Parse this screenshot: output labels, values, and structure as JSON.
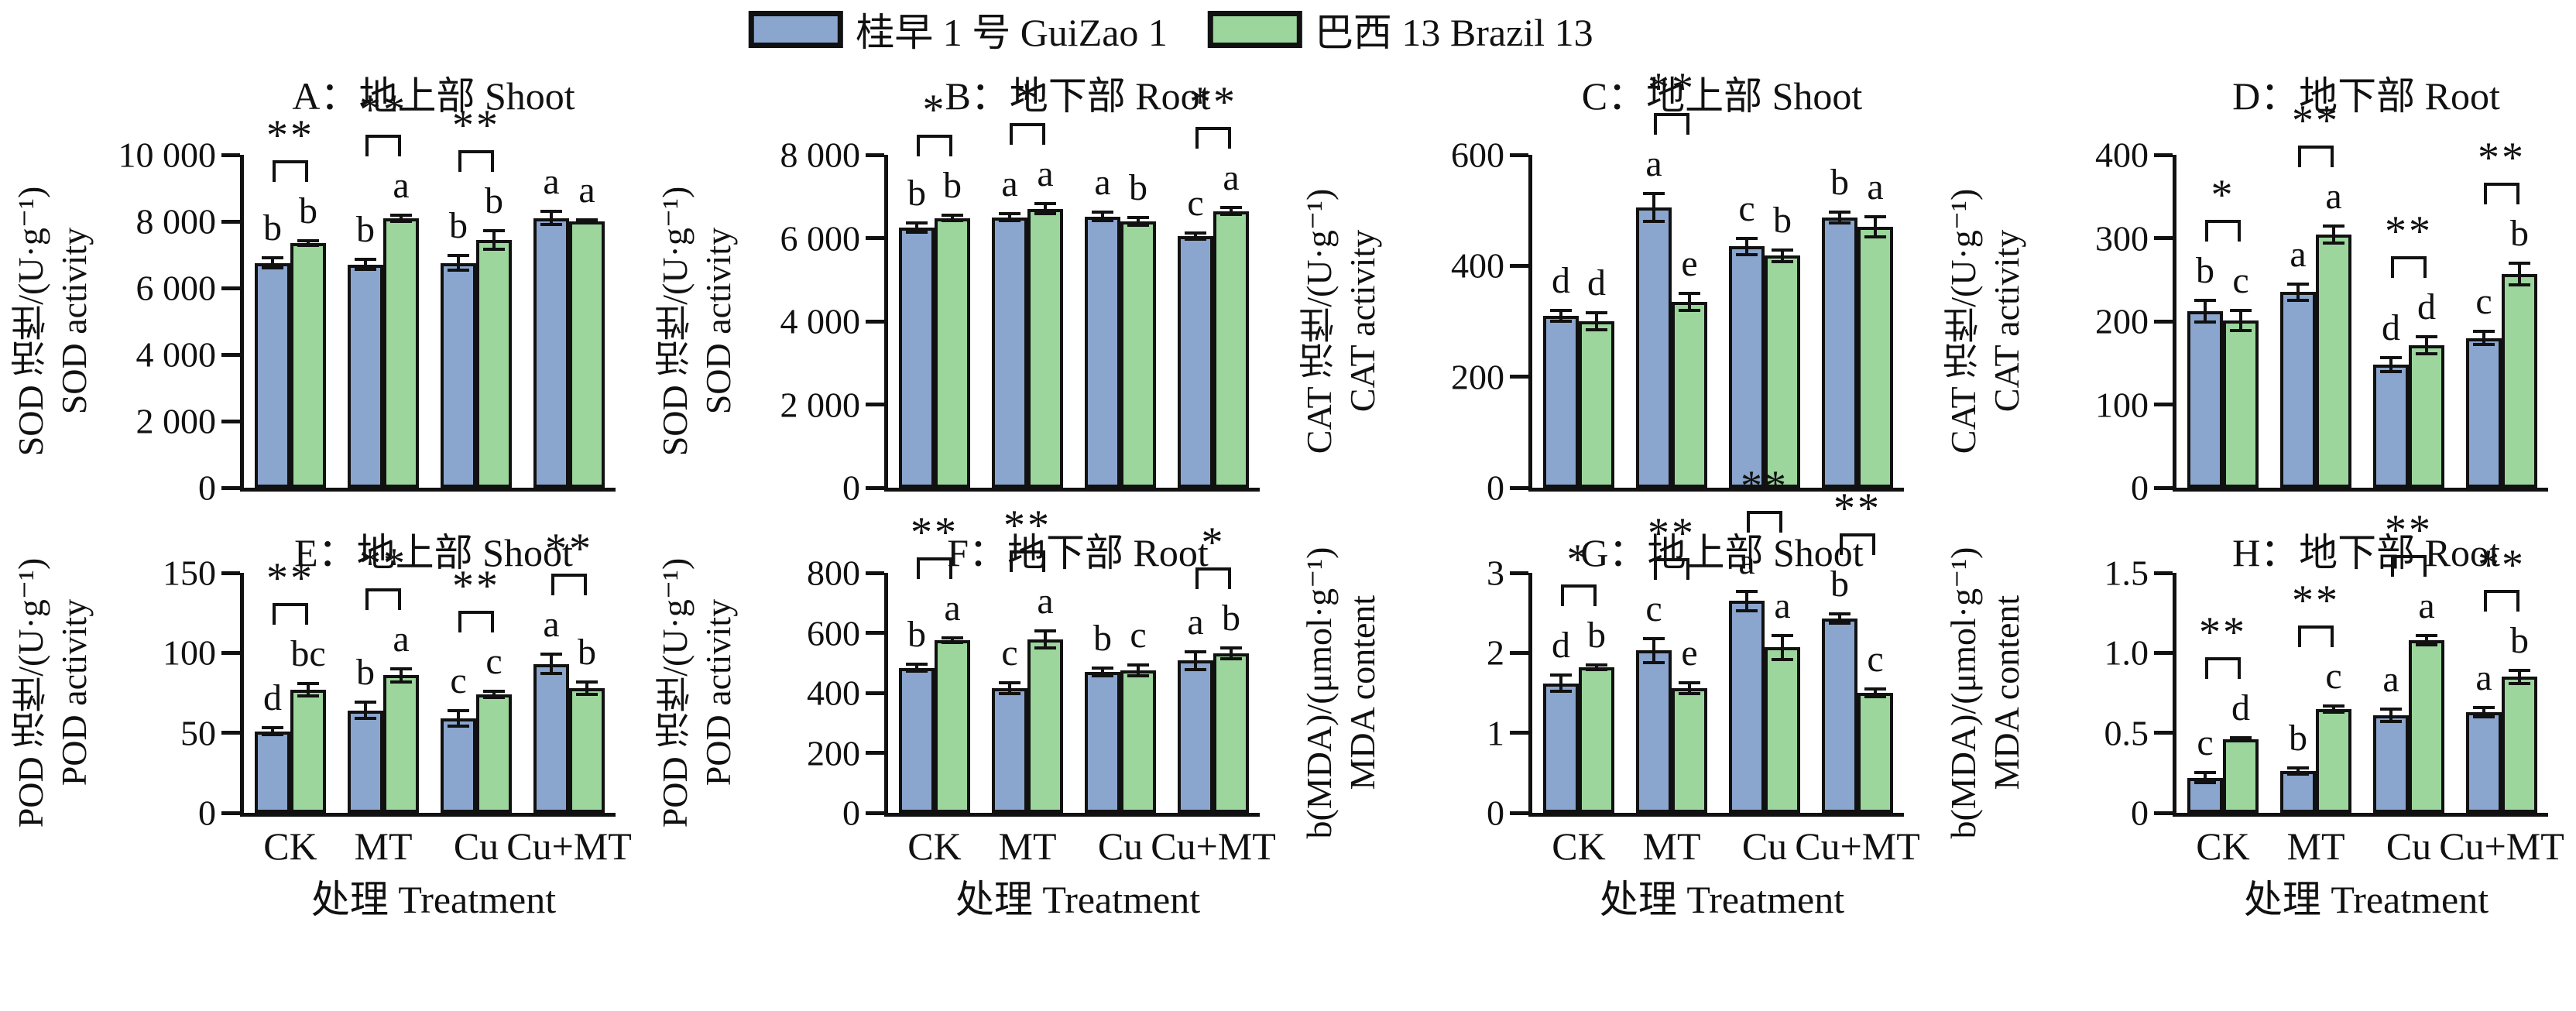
{
  "legend": {
    "items": [
      {
        "label": "桂早 1 号 GuiZao 1",
        "color": "#8aa5ce"
      },
      {
        "label": "巴西 13 Brazil 13",
        "color": "#9cd69c"
      }
    ]
  },
  "x_axis": {
    "categories": [
      "CK",
      "MT",
      "Cu",
      "Cu+MT"
    ],
    "title": "处理 Treatment"
  },
  "colors": {
    "bar_border": "#111111",
    "axis": "#111111"
  },
  "chart_data": [
    {
      "id": "A",
      "type": "bar",
      "title": "A：地上部 Shoot",
      "ylabel_cn": "SOD 活性/(U·g⁻¹)",
      "ylabel_en": "SOD activity",
      "ylim": [
        0,
        10000
      ],
      "yticks": [
        0,
        2000,
        4000,
        6000,
        8000,
        10000
      ],
      "ytick_labels": [
        "0",
        "2 000",
        "4 000",
        "6 000",
        "8 000",
        "10 000"
      ],
      "categories": [
        "CK",
        "MT",
        "Cu",
        "Cu+MT"
      ],
      "series": [
        {
          "name": "GuiZao 1",
          "values": [
            6750,
            6700,
            6750,
            8100
          ],
          "errors": [
            150,
            150,
            220,
            200
          ],
          "letters": [
            "b",
            "b",
            "b",
            "a"
          ]
        },
        {
          "name": "Brazil 13",
          "values": [
            7350,
            8100,
            7450,
            8000
          ],
          "errors": [
            70,
            90,
            280,
            40
          ],
          "letters": [
            "b",
            "a",
            "b",
            "a"
          ]
        }
      ],
      "significance": [
        "**",
        "**",
        "**",
        ""
      ]
    },
    {
      "id": "B",
      "type": "bar",
      "title": "B：地下部 Root",
      "ylabel_cn": "SOD 活性/(U·g⁻¹)",
      "ylabel_en": "SOD activity",
      "ylim": [
        0,
        8000
      ],
      "yticks": [
        0,
        2000,
        4000,
        6000,
        8000
      ],
      "ytick_labels": [
        "0",
        "2 000",
        "4 000",
        "6 000",
        "8 000"
      ],
      "categories": [
        "CK",
        "MT",
        "Cu",
        "Cu+MT"
      ],
      "series": [
        {
          "name": "GuiZao 1",
          "values": [
            6250,
            6500,
            6520,
            6050
          ],
          "errors": [
            110,
            90,
            110,
            80
          ],
          "letters": [
            "b",
            "a",
            "a",
            "c"
          ]
        },
        {
          "name": "Brazil 13",
          "values": [
            6480,
            6700,
            6400,
            6650
          ],
          "errors": [
            60,
            120,
            90,
            90
          ],
          "letters": [
            "b",
            "a",
            "b",
            "a"
          ]
        }
      ],
      "significance": [
        "*",
        "*",
        "",
        "**"
      ]
    },
    {
      "id": "C",
      "type": "bar",
      "title": "C：地上部 Shoot",
      "ylabel_cn": "CAT 活性/(U·g⁻¹)",
      "ylabel_en": "CAT activity",
      "ylim": [
        0,
        600
      ],
      "yticks": [
        0,
        200,
        400,
        600
      ],
      "ytick_labels": [
        "0",
        "200",
        "400",
        "600"
      ],
      "categories": [
        "CK",
        "MT",
        "Cu",
        "Cu+MT"
      ],
      "series": [
        {
          "name": "GuiZao 1",
          "values": [
            310,
            505,
            435,
            487
          ],
          "errors": [
            10,
            25,
            15,
            10
          ],
          "letters": [
            "d",
            "a",
            "c",
            "b"
          ]
        },
        {
          "name": "Brazil 13",
          "values": [
            300,
            335,
            418,
            470
          ],
          "errors": [
            15,
            15,
            10,
            18
          ],
          "letters": [
            "d",
            "e",
            "b",
            "a"
          ]
        }
      ],
      "significance": [
        "",
        "**",
        "",
        ""
      ]
    },
    {
      "id": "D",
      "type": "bar",
      "title": "D：地下部 Root",
      "ylabel_cn": "CAT 活性/(U·g⁻¹)",
      "ylabel_en": "CAT activity",
      "ylim": [
        0,
        400
      ],
      "yticks": [
        0,
        100,
        200,
        300,
        400
      ],
      "ytick_labels": [
        "0",
        "100",
        "200",
        "300",
        "400"
      ],
      "categories": [
        "CK",
        "MT",
        "Cu",
        "Cu+MT"
      ],
      "series": [
        {
          "name": "GuiZao 1",
          "values": [
            212,
            235,
            148,
            180
          ],
          "errors": [
            13,
            10,
            8,
            8
          ],
          "letters": [
            "b",
            "a",
            "d",
            "c"
          ]
        },
        {
          "name": "Brazil 13",
          "values": [
            201,
            304,
            171,
            257
          ],
          "errors": [
            12,
            10,
            10,
            13
          ],
          "letters": [
            "c",
            "a",
            "d",
            "b"
          ]
        }
      ],
      "significance": [
        "*",
        "**",
        "**",
        "**"
      ]
    },
    {
      "id": "E",
      "type": "bar",
      "title": "E：地上部 Shoot",
      "ylabel_cn": "POD 活性/(U·g⁻¹)",
      "ylabel_en": "POD activity",
      "ylim": [
        0,
        150
      ],
      "yticks": [
        0,
        50,
        100,
        150
      ],
      "ytick_labels": [
        "0",
        "50",
        "100",
        "150"
      ],
      "categories": [
        "CK",
        "MT",
        "Cu",
        "Cu+MT"
      ],
      "series": [
        {
          "name": "GuiZao 1",
          "values": [
            51,
            64,
            59,
            93
          ],
          "errors": [
            2,
            5,
            5,
            6
          ],
          "letters": [
            "d",
            "b",
            "c",
            "a"
          ]
        },
        {
          "name": "Brazil 13",
          "values": [
            77,
            86,
            74,
            78
          ],
          "errors": [
            4,
            4,
            2,
            4
          ],
          "letters": [
            "bc",
            "a",
            "c",
            "b"
          ]
        }
      ],
      "significance": [
        "**",
        "**",
        "**",
        "**"
      ]
    },
    {
      "id": "F",
      "type": "bar",
      "title": "F：地下部 Root",
      "ylabel_cn": "POD 活性/(U·g⁻¹)",
      "ylabel_en": "POD activity",
      "ylim": [
        0,
        800
      ],
      "yticks": [
        0,
        200,
        400,
        600,
        800
      ],
      "ytick_labels": [
        "0",
        "200",
        "400",
        "600",
        "800"
      ],
      "categories": [
        "CK",
        "MT",
        "Cu",
        "Cu+MT"
      ],
      "series": [
        {
          "name": "GuiZao 1",
          "values": [
            483,
            415,
            470,
            508
          ],
          "errors": [
            12,
            18,
            12,
            30
          ],
          "letters": [
            "b",
            "c",
            "b",
            "a"
          ]
        },
        {
          "name": "Brazil 13",
          "values": [
            575,
            578,
            476,
            532
          ],
          "errors": [
            8,
            28,
            18,
            18
          ],
          "letters": [
            "a",
            "a",
            "c",
            "b"
          ]
        }
      ],
      "significance": [
        "**",
        "**",
        "",
        "*"
      ]
    },
    {
      "id": "G",
      "type": "bar",
      "title": "G：地上部 Shoot",
      "ylabel_cn": "b(MDA)/(μmol·g⁻¹)",
      "ylabel_en": "MDA content",
      "ylim": [
        0,
        3
      ],
      "yticks": [
        0,
        1,
        2,
        3
      ],
      "ytick_labels": [
        "0",
        "1",
        "2",
        "3"
      ],
      "categories": [
        "CK",
        "MT",
        "Cu",
        "Cu+MT"
      ],
      "series": [
        {
          "name": "GuiZao 1",
          "values": [
            1.62,
            2.03,
            2.65,
            2.43
          ],
          "errors": [
            0.1,
            0.15,
            0.12,
            0.06
          ],
          "letters": [
            "d",
            "c",
            "a",
            "b"
          ]
        },
        {
          "name": "Brazil 13",
          "values": [
            1.82,
            1.56,
            2.07,
            1.5
          ],
          "errors": [
            0.03,
            0.07,
            0.15,
            0.05
          ],
          "letters": [
            "b",
            "e",
            "a",
            "c"
          ]
        }
      ],
      "significance": [
        "*",
        "**",
        "**",
        "**"
      ]
    },
    {
      "id": "H",
      "type": "bar",
      "title": "H：地下部 Root",
      "ylabel_cn": "b(MDA)/(μmol·g⁻¹)",
      "ylabel_en": "MDA content",
      "ylim": [
        0,
        1.5
      ],
      "yticks": [
        0,
        0.5,
        1.0,
        1.5
      ],
      "ytick_labels": [
        "0",
        "0.5",
        "1.0",
        "1.5"
      ],
      "categories": [
        "CK",
        "MT",
        "Cu",
        "Cu+MT"
      ],
      "series": [
        {
          "name": "GuiZao 1",
          "values": [
            0.22,
            0.26,
            0.61,
            0.63
          ],
          "errors": [
            0.03,
            0.02,
            0.04,
            0.03
          ],
          "letters": [
            "c",
            "b",
            "a",
            "a"
          ]
        },
        {
          "name": "Brazil 13",
          "values": [
            0.46,
            0.65,
            1.08,
            0.85
          ],
          "errors": [
            0.01,
            0.02,
            0.03,
            0.04
          ],
          "letters": [
            "d",
            "c",
            "a",
            "b"
          ]
        }
      ],
      "significance": [
        "**",
        "**",
        "**",
        "**"
      ]
    }
  ]
}
